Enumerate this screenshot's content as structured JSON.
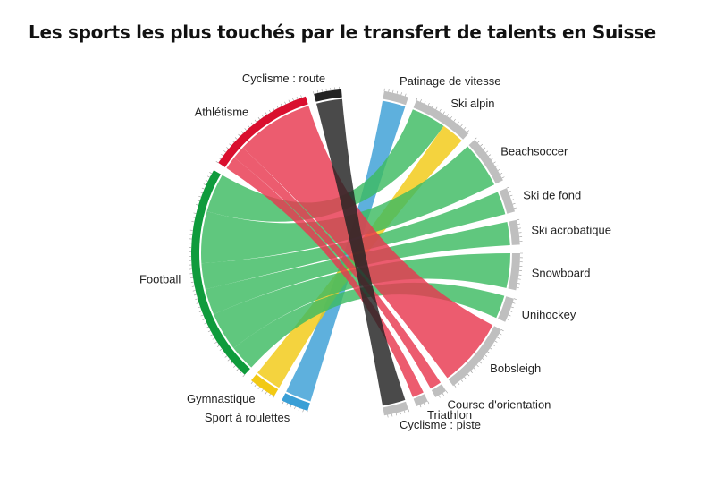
{
  "title": "Les sports les plus touchés par le transfert de talents en Suisse",
  "colors": {
    "athletisme": "#e8384f",
    "football": "#3dbb62",
    "gymnastique": "#f2c914",
    "roulettes": "#3a9fd6",
    "cyclisme_route": "#222222",
    "target": "#bfbfbf",
    "athletisme_arc": "#d90f2e",
    "football_arc": "#0f9b3c"
  },
  "chart_data": {
    "type": "chord",
    "title": "Les sports les plus touchés par le transfert de talents en Suisse",
    "sources": [
      {
        "name": "Cyclisme : route",
        "color": "cyclisme_route"
      },
      {
        "name": "Athlétisme",
        "color": "athletisme"
      },
      {
        "name": "Football",
        "color": "football"
      },
      {
        "name": "Gymnastique",
        "color": "gymnastique"
      },
      {
        "name": "Sport à roulettes",
        "color": "roulettes"
      }
    ],
    "targets": [
      {
        "name": "Patinage de vitesse"
      },
      {
        "name": "Ski alpin"
      },
      {
        "name": "Beachsoccer"
      },
      {
        "name": "Ski de fond"
      },
      {
        "name": "Ski acrobatique"
      },
      {
        "name": "Snowboard"
      },
      {
        "name": "Unihockey"
      },
      {
        "name": "Bobsleigh"
      },
      {
        "name": "Course d'orientation"
      },
      {
        "name": "Triathlon"
      },
      {
        "name": "Cyclisme : piste"
      }
    ],
    "flows": [
      {
        "source": "Sport à roulettes",
        "target": "Patinage de vitesse",
        "value": 2
      },
      {
        "source": "Football",
        "target": "Ski alpin",
        "value": 3
      },
      {
        "source": "Gymnastique",
        "target": "Ski alpin",
        "value": 2
      },
      {
        "source": "Football",
        "target": "Beachsoccer",
        "value": 4
      },
      {
        "source": "Football",
        "target": "Ski de fond",
        "value": 2
      },
      {
        "source": "Football",
        "target": "Ski acrobatique",
        "value": 2
      },
      {
        "source": "Football",
        "target": "Snowboard",
        "value": 3
      },
      {
        "source": "Football",
        "target": "Unihockey",
        "value": 2
      },
      {
        "source": "Athlétisme",
        "target": "Bobsleigh",
        "value": 6
      },
      {
        "source": "Athlétisme",
        "target": "Course d'orientation",
        "value": 1
      },
      {
        "source": "Athlétisme",
        "target": "Triathlon",
        "value": 1
      },
      {
        "source": "Cyclisme : route",
        "target": "Cyclisme : piste",
        "value": 2
      }
    ]
  }
}
